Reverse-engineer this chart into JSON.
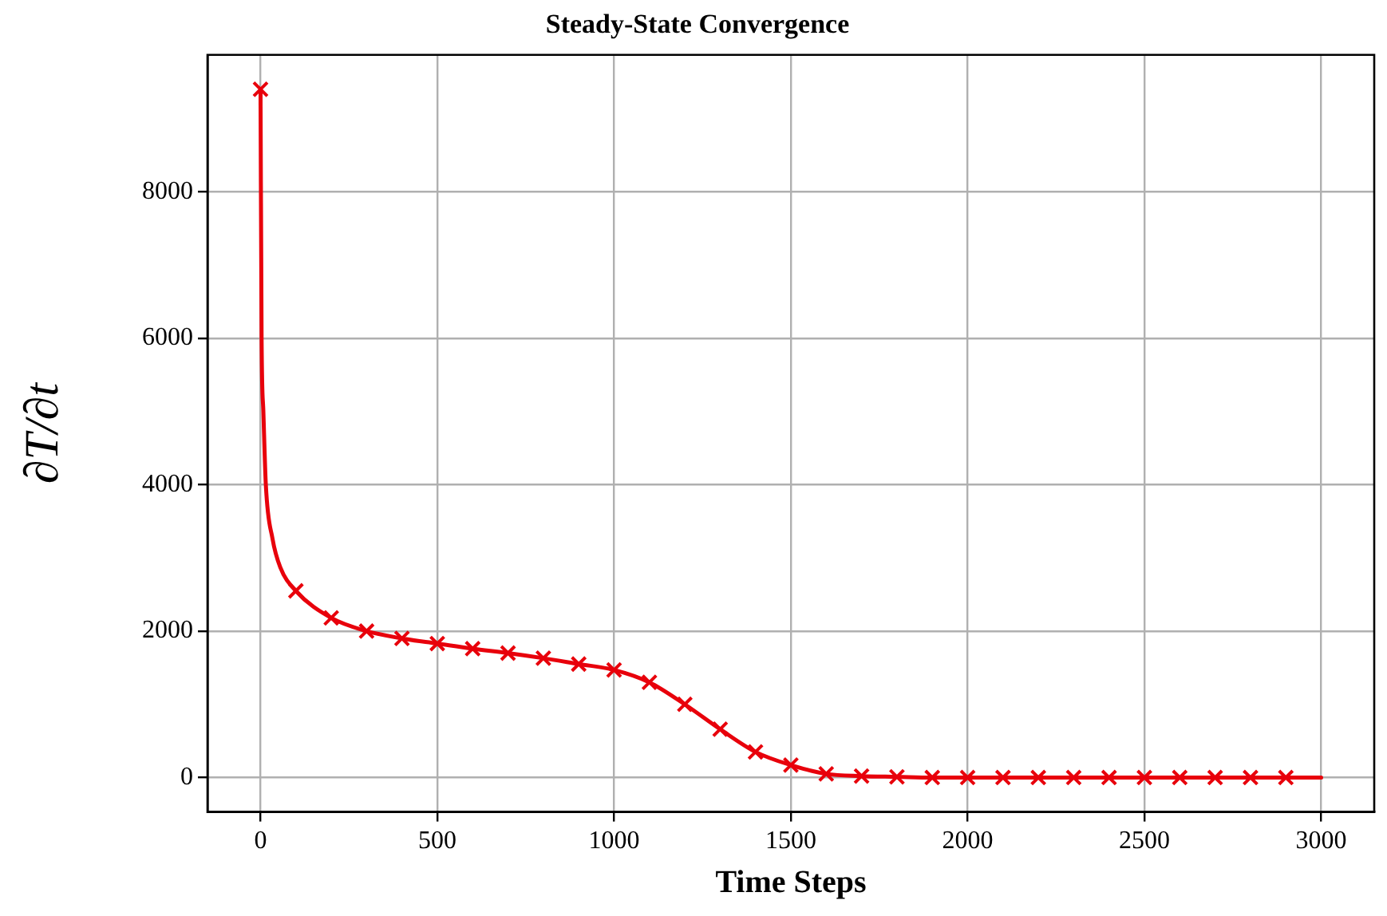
{
  "chart_data": {
    "type": "line",
    "title": "Steady-State Convergence",
    "xlabel": "Time Steps",
    "ylabel": "∂T/∂t",
    "series": [
      {
        "color": "#e8000b",
        "marker": "none",
        "x": [
          0,
          3,
          8,
          15,
          34,
          56,
          100,
          200,
          300,
          400,
          500,
          600,
          700,
          800,
          900,
          1000,
          1100,
          1200,
          1300,
          1400,
          1500,
          1600,
          1700,
          1800,
          1900,
          2000,
          2100,
          2200,
          2300,
          2400,
          2500,
          2600,
          2700,
          2800,
          2900,
          3000
        ],
        "values": [
          9400,
          6000,
          5000,
          4000,
          3260,
          2870,
          2550,
          2180,
          2000,
          1900,
          1830,
          1760,
          1700,
          1630,
          1550,
          1470,
          1300,
          1000,
          660,
          350,
          170,
          50,
          20,
          10,
          0,
          0,
          0,
          0,
          0,
          0,
          0,
          0,
          0,
          0,
          0,
          0
        ]
      },
      {
        "type": "scatter",
        "color": "#e8000b",
        "marker": "cross",
        "x": [
          0,
          100,
          200,
          300,
          400,
          500,
          600,
          700,
          800,
          900,
          1000,
          1100,
          1200,
          1300,
          1400,
          1500,
          1600,
          1700,
          1800,
          1900,
          2000,
          2100,
          2200,
          2300,
          2400,
          2500,
          2600,
          2700,
          2800,
          2900
        ],
        "values": [
          9400,
          2550,
          2180,
          2000,
          1900,
          1830,
          1760,
          1700,
          1630,
          1550,
          1470,
          1300,
          1000,
          660,
          350,
          170,
          50,
          20,
          10,
          0,
          0,
          0,
          0,
          0,
          0,
          0,
          0,
          0,
          0,
          0
        ]
      }
    ],
    "xlim": [
      -150,
      3150
    ],
    "xticks": [
      0,
      500,
      1000,
      1500,
      2000,
      2500,
      3000
    ],
    "ylim": [
      -470,
      9870
    ],
    "yticks": [
      0,
      2000,
      4000,
      6000,
      8000
    ],
    "grid": true,
    "legend": false
  }
}
